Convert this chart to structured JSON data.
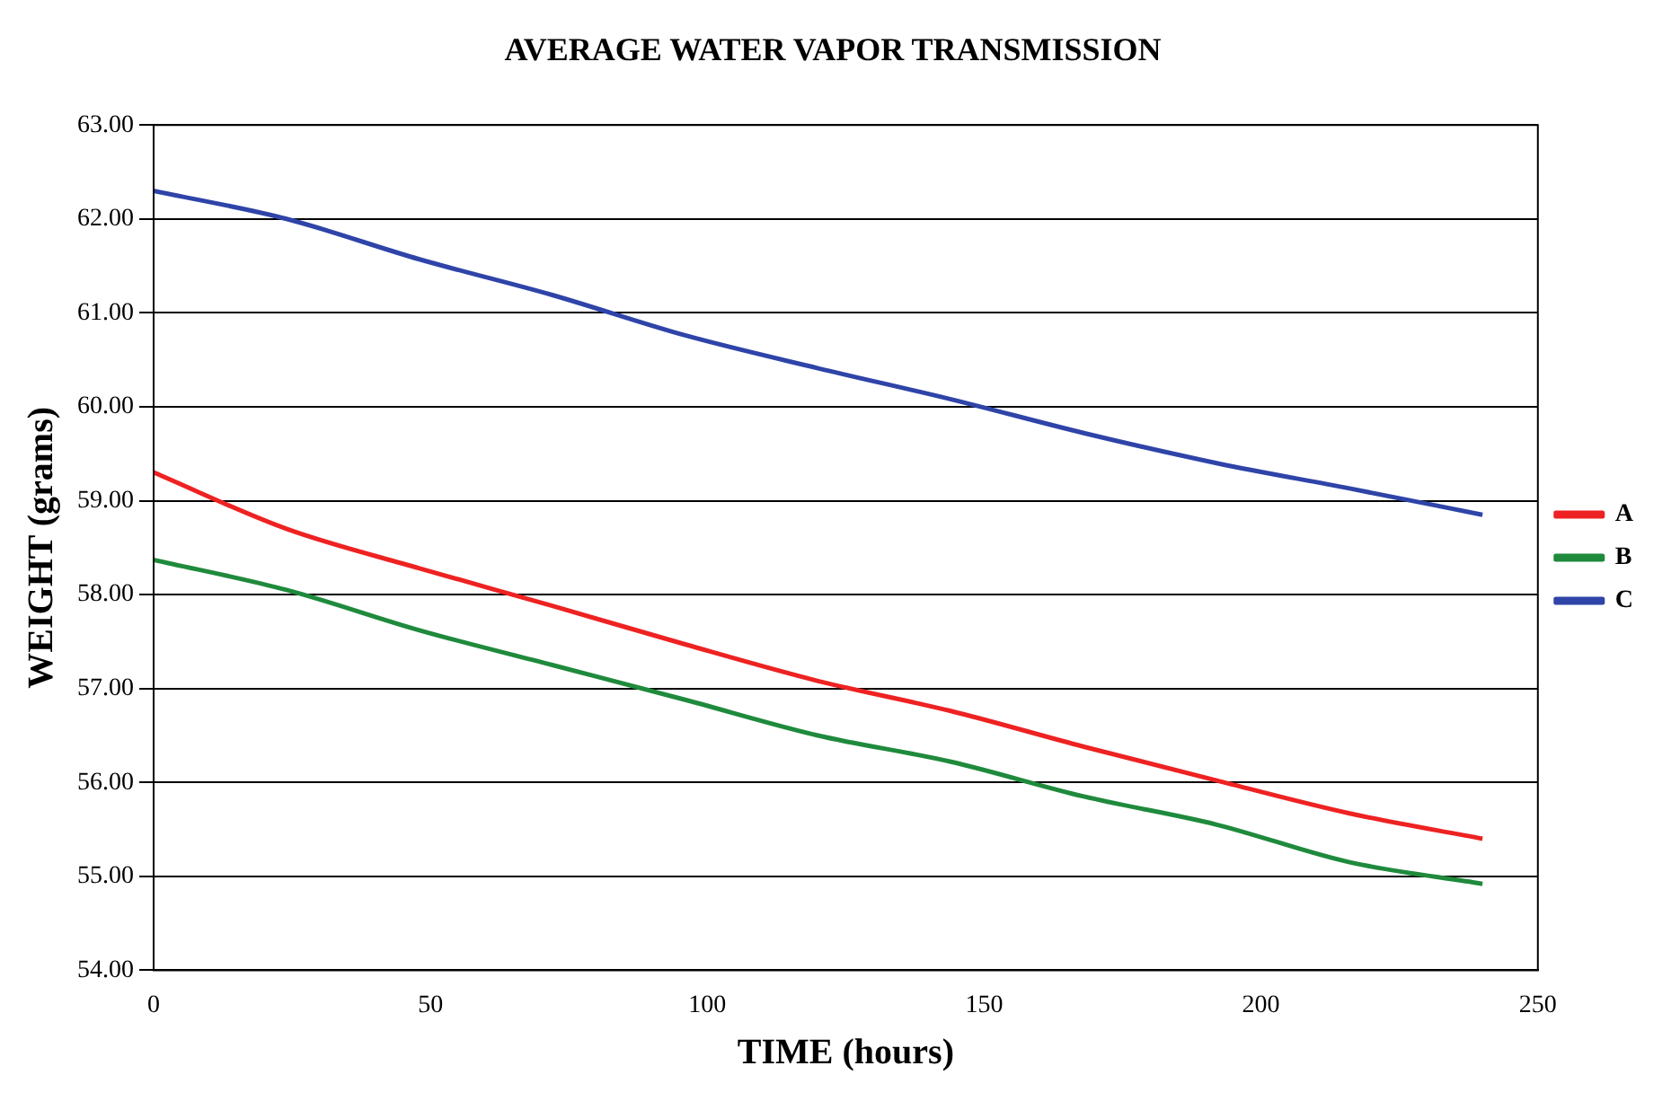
{
  "chart_data": {
    "type": "line",
    "title": "AVERAGE WATER VAPOR TRANSMISSION",
    "xlabel": "TIME (hours)",
    "ylabel": "WEIGHT (grams)",
    "x": [
      0,
      24,
      48,
      72,
      96,
      120,
      144,
      168,
      192,
      216,
      240
    ],
    "series": [
      {
        "name": "A",
        "color": "#ee2222",
        "values": [
          59.3,
          58.7,
          58.28,
          57.88,
          57.47,
          57.08,
          56.76,
          56.38,
          56.02,
          55.67,
          55.4
        ]
      },
      {
        "name": "B",
        "color": "#1f8a3c",
        "values": [
          58.37,
          58.05,
          57.62,
          57.25,
          56.88,
          56.5,
          56.22,
          55.85,
          55.55,
          55.15,
          54.92
        ]
      },
      {
        "name": "C",
        "color": "#2f44a8",
        "values": [
          62.3,
          62.0,
          61.57,
          61.19,
          60.76,
          60.41,
          60.08,
          59.72,
          59.4,
          59.13,
          58.85
        ]
      }
    ],
    "xlim": [
      0,
      250
    ],
    "xticks": [
      0,
      50,
      100,
      150,
      200,
      250
    ],
    "ylim": [
      54,
      63
    ],
    "yticks": [
      {
        "value": 54,
        "label": "54.00"
      },
      {
        "value": 55,
        "label": "55.00"
      },
      {
        "value": 56,
        "label": "56.00"
      },
      {
        "value": 57,
        "label": "57.00"
      },
      {
        "value": 58,
        "label": "58.00"
      },
      {
        "value": 59,
        "label": "59.00"
      },
      {
        "value": 60,
        "label": "60.00"
      },
      {
        "value": 61,
        "label": "61.00"
      },
      {
        "value": 62,
        "label": "62.00"
      },
      {
        "value": 63,
        "label": "63.00"
      }
    ],
    "grid": "y",
    "legend": "right",
    "marker": "none",
    "line_style": "solid"
  }
}
